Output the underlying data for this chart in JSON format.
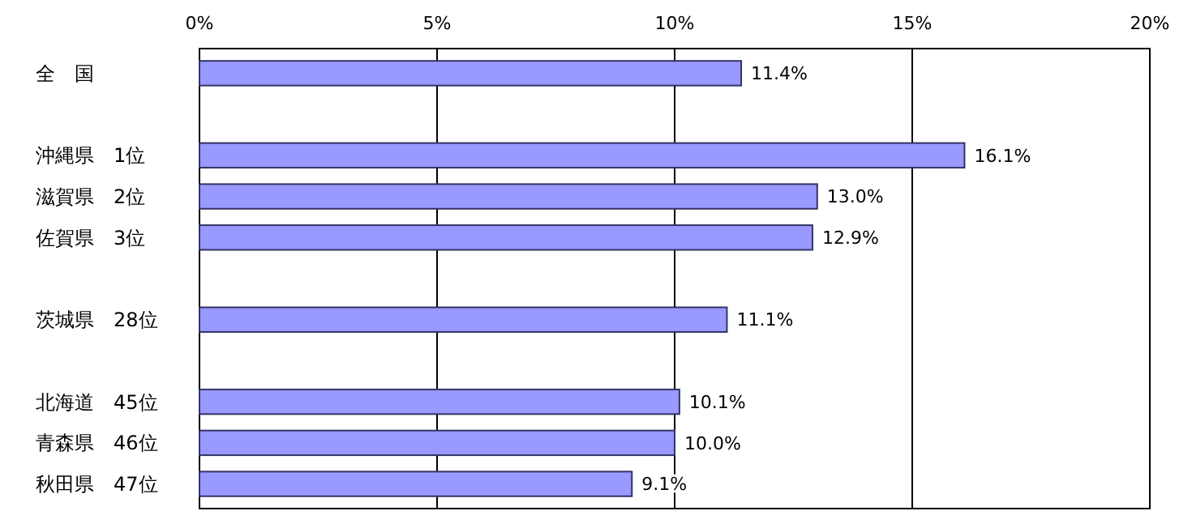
{
  "chart_data": {
    "type": "bar",
    "orientation": "horizontal",
    "categories": [
      "全　国",
      null,
      "沖縄県　1位",
      "滋賀県　2位",
      "佐賀県　3位",
      null,
      "茨城県　28位",
      null,
      "北海道　45位",
      "青森県　46位",
      "秋田県　47位"
    ],
    "values": [
      11.4,
      null,
      16.1,
      13.0,
      12.9,
      null,
      11.1,
      null,
      10.1,
      10.0,
      9.1
    ],
    "value_labels": [
      "11.4%",
      null,
      "16.1%",
      "13.0%",
      "12.9%",
      null,
      "11.1%",
      null,
      "10.1%",
      "10.0%",
      "9.1%"
    ],
    "color": "#9999ff",
    "xlim": [
      0,
      20
    ],
    "xticks": [
      {
        "value": 0,
        "label": "0%"
      },
      {
        "value": 5,
        "label": "5%"
      },
      {
        "value": 10,
        "label": "10%"
      },
      {
        "value": 15,
        "label": "15%"
      },
      {
        "value": 20,
        "label": "20%"
      }
    ],
    "grid": "x"
  }
}
